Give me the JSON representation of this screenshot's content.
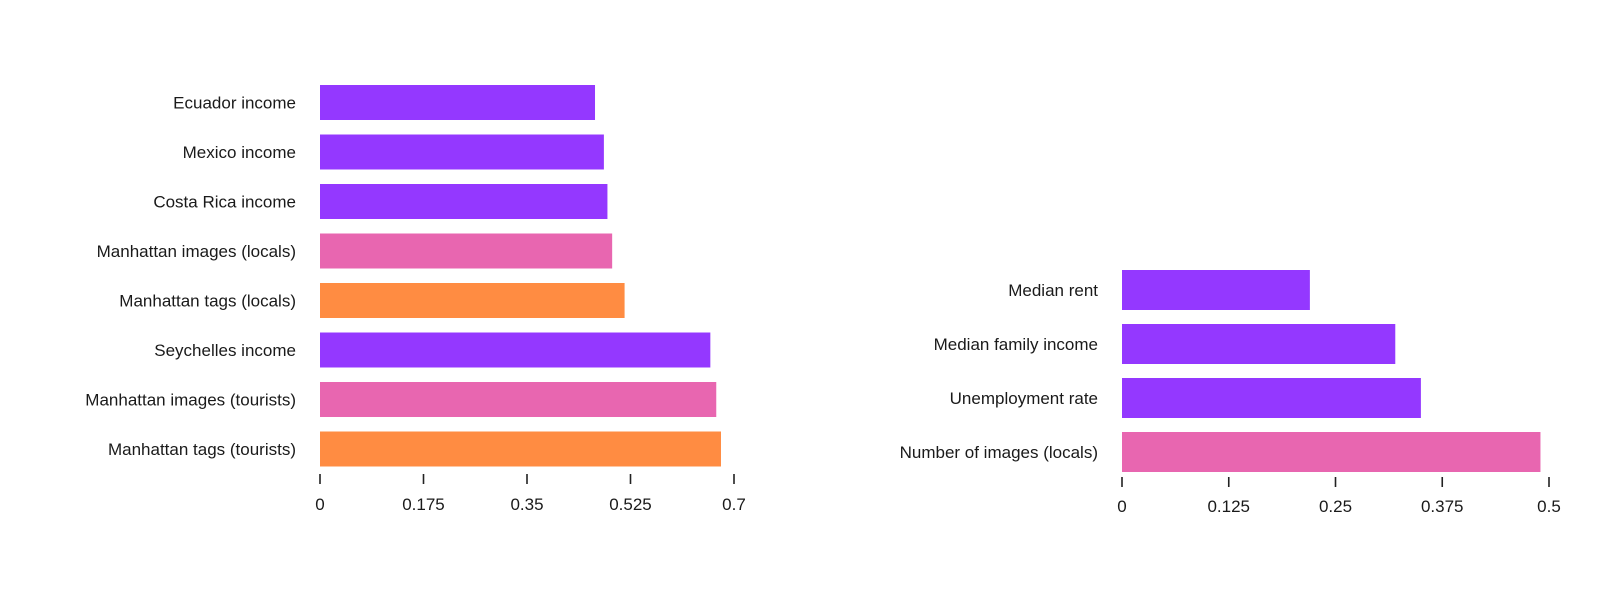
{
  "palette": {
    "purple": "#9438ff",
    "pink": "#e866b0",
    "orange": "#ff8c42"
  },
  "chart_data": [
    {
      "type": "bar",
      "orientation": "horizontal",
      "categories": [
        "Ecuador income",
        "Mexico income",
        "Costa Rica income",
        "Manhattan images (locals)",
        "Manhattan tags (locals)",
        "Seychelles income",
        "Manhattan images (tourists)",
        "Manhattan tags (tourists)"
      ],
      "values": [
        0.465,
        0.48,
        0.486,
        0.494,
        0.515,
        0.66,
        0.67,
        0.678
      ],
      "bar_colors": [
        "purple",
        "purple",
        "purple",
        "pink",
        "orange",
        "purple",
        "pink",
        "orange"
      ],
      "xlim": [
        0,
        0.7
      ],
      "xticks": [
        "0",
        "0.175",
        "0.35",
        "0.525",
        "0.7"
      ],
      "title": "",
      "xlabel": "",
      "ylabel": "",
      "grid": false,
      "legend": "none"
    },
    {
      "type": "bar",
      "orientation": "horizontal",
      "categories": [
        "Median rent",
        "Median family income",
        "Unemployment rate",
        "Number of images (locals)"
      ],
      "values": [
        0.22,
        0.32,
        0.35,
        0.49
      ],
      "bar_colors": [
        "purple",
        "purple",
        "purple",
        "pink"
      ],
      "xlim": [
        0,
        0.5
      ],
      "xticks": [
        "0",
        "0.125",
        "0.25",
        "0.375",
        "0.5"
      ],
      "title": "",
      "xlabel": "",
      "ylabel": "",
      "grid": false,
      "legend": "none"
    }
  ]
}
